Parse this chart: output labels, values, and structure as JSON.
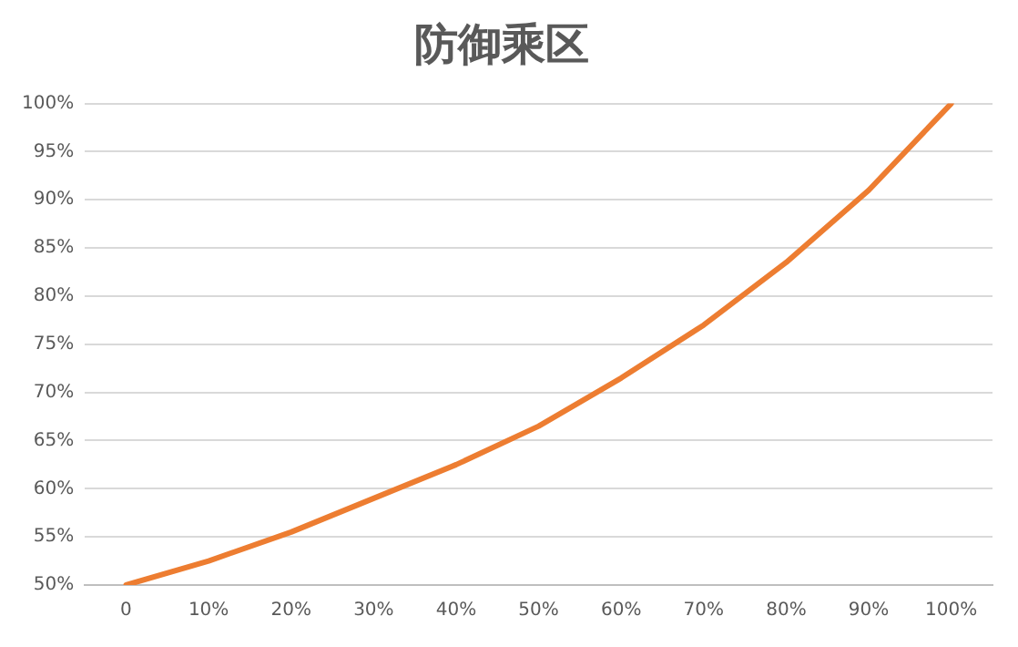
{
  "chart_data": {
    "type": "line",
    "title": "防御乘区",
    "categories": [
      "0",
      "10%",
      "20%",
      "30%",
      "40%",
      "50%",
      "60%",
      "70%",
      "80%",
      "90%",
      "100%"
    ],
    "series": [
      {
        "color": "#ed7d31",
        "values": [
          50,
          52.5,
          55.5,
          59,
          62.5,
          66.5,
          71.5,
          77,
          83.5,
          91,
          100
        ]
      }
    ],
    "ylim": [
      50,
      100
    ],
    "yticks": [
      {
        "value": 50,
        "label": "50%"
      },
      {
        "value": 55,
        "label": "55%"
      },
      {
        "value": 60,
        "label": "60%"
      },
      {
        "value": 65,
        "label": "65%"
      },
      {
        "value": 70,
        "label": "70%"
      },
      {
        "value": 75,
        "label": "75%"
      },
      {
        "value": 80,
        "label": "80%"
      },
      {
        "value": 85,
        "label": "85%"
      },
      {
        "value": 90,
        "label": "90%"
      },
      {
        "value": 95,
        "label": "95%"
      },
      {
        "value": 100,
        "label": "100%"
      }
    ],
    "grid": "y",
    "legend": false,
    "marker": "none",
    "line_style": "solid"
  }
}
